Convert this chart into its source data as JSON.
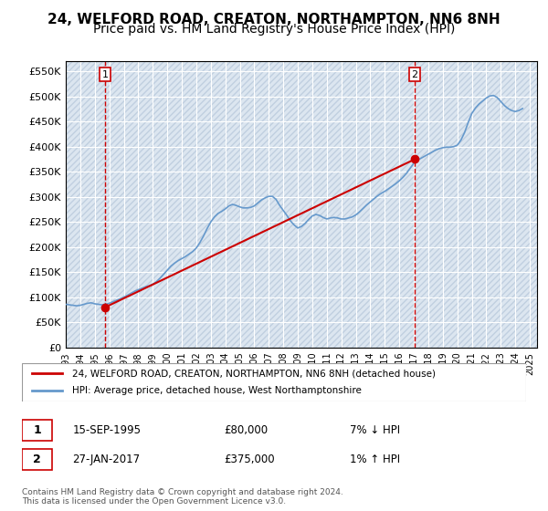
{
  "title": "24, WELFORD ROAD, CREATON, NORTHAMPTON, NN6 8NH",
  "subtitle": "Price paid vs. HM Land Registry's House Price Index (HPI)",
  "title_fontsize": 11,
  "subtitle_fontsize": 10,
  "background_color": "#ffffff",
  "plot_bg_color": "#dce6f0",
  "grid_color": "#ffffff",
  "hatch_color": "#c0cfe0",
  "ylabel_ticks": [
    "£0",
    "£50K",
    "£100K",
    "£150K",
    "£200K",
    "£250K",
    "£300K",
    "£350K",
    "£400K",
    "£450K",
    "£500K",
    "£550K"
  ],
  "ytick_values": [
    0,
    50000,
    100000,
    150000,
    200000,
    250000,
    300000,
    350000,
    400000,
    450000,
    500000,
    550000
  ],
  "ylim": [
    0,
    570000
  ],
  "xlim_start": 1993.0,
  "xlim_end": 2025.5,
  "xtick_years": [
    1993,
    1994,
    1995,
    1996,
    1997,
    1998,
    1999,
    2000,
    2001,
    2002,
    2003,
    2004,
    2005,
    2006,
    2007,
    2008,
    2009,
    2010,
    2011,
    2012,
    2013,
    2014,
    2015,
    2016,
    2017,
    2018,
    2019,
    2020,
    2021,
    2022,
    2023,
    2024,
    2025
  ],
  "sale1_x": 1995.71,
  "sale1_y": 80000,
  "sale1_label": "1",
  "sale1_date": "15-SEP-1995",
  "sale1_price": "£80,000",
  "sale1_hpi": "7% ↓ HPI",
  "sale2_x": 2017.07,
  "sale2_y": 375000,
  "sale2_label": "2",
  "sale2_date": "27-JAN-2017",
  "sale2_price": "£375,000",
  "sale2_hpi": "1% ↑ HPI",
  "marker_color": "#cc0000",
  "vline_color": "#cc0000",
  "hpi_line_color": "#6699cc",
  "price_line_color": "#cc0000",
  "legend_label_price": "24, WELFORD ROAD, CREATON, NORTHAMPTON, NN6 8NH (detached house)",
  "legend_label_hpi": "HPI: Average price, detached house, West Northamptonshire",
  "footer": "Contains HM Land Registry data © Crown copyright and database right 2024.\nThis data is licensed under the Open Government Licence v3.0.",
  "hpi_data_x": [
    1993.0,
    1993.25,
    1993.5,
    1993.75,
    1994.0,
    1994.25,
    1994.5,
    1994.75,
    1995.0,
    1995.25,
    1995.5,
    1995.75,
    1996.0,
    1996.25,
    1996.5,
    1996.75,
    1997.0,
    1997.25,
    1997.5,
    1997.75,
    1998.0,
    1998.25,
    1998.5,
    1998.75,
    1999.0,
    1999.25,
    1999.5,
    1999.75,
    2000.0,
    2000.25,
    2000.5,
    2000.75,
    2001.0,
    2001.25,
    2001.5,
    2001.75,
    2002.0,
    2002.25,
    2002.5,
    2002.75,
    2003.0,
    2003.25,
    2003.5,
    2003.75,
    2004.0,
    2004.25,
    2004.5,
    2004.75,
    2005.0,
    2005.25,
    2005.5,
    2005.75,
    2006.0,
    2006.25,
    2006.5,
    2006.75,
    2007.0,
    2007.25,
    2007.5,
    2007.75,
    2008.0,
    2008.25,
    2008.5,
    2008.75,
    2009.0,
    2009.25,
    2009.5,
    2009.75,
    2010.0,
    2010.25,
    2010.5,
    2010.75,
    2011.0,
    2011.25,
    2011.5,
    2011.75,
    2012.0,
    2012.25,
    2012.5,
    2012.75,
    2013.0,
    2013.25,
    2013.5,
    2013.75,
    2014.0,
    2014.25,
    2014.5,
    2014.75,
    2015.0,
    2015.25,
    2015.5,
    2015.75,
    2016.0,
    2016.25,
    2016.5,
    2016.75,
    2017.0,
    2017.25,
    2017.5,
    2017.75,
    2018.0,
    2018.25,
    2018.5,
    2018.75,
    2019.0,
    2019.25,
    2019.5,
    2019.75,
    2020.0,
    2020.25,
    2020.5,
    2020.75,
    2021.0,
    2021.25,
    2021.5,
    2021.75,
    2022.0,
    2022.25,
    2022.5,
    2022.75,
    2023.0,
    2023.25,
    2023.5,
    2023.75,
    2024.0,
    2024.25,
    2024.5
  ],
  "hpi_data_y": [
    86000,
    85000,
    84000,
    83000,
    84000,
    86000,
    88000,
    89000,
    87000,
    86000,
    85000,
    86000,
    88000,
    91000,
    94000,
    97000,
    100000,
    104000,
    108000,
    112000,
    115000,
    118000,
    121000,
    123000,
    126000,
    131000,
    138000,
    146000,
    154000,
    162000,
    168000,
    173000,
    177000,
    181000,
    186000,
    191000,
    198000,
    209000,
    222000,
    237000,
    250000,
    260000,
    267000,
    271000,
    276000,
    282000,
    285000,
    283000,
    280000,
    278000,
    278000,
    279000,
    282000,
    288000,
    294000,
    298000,
    301000,
    301000,
    295000,
    283000,
    273000,
    263000,
    252000,
    244000,
    238000,
    241000,
    247000,
    255000,
    262000,
    265000,
    263000,
    259000,
    256000,
    258000,
    259000,
    258000,
    256000,
    256000,
    258000,
    260000,
    264000,
    270000,
    277000,
    284000,
    290000,
    296000,
    302000,
    307000,
    311000,
    316000,
    321000,
    326000,
    332000,
    339000,
    347000,
    357000,
    367000,
    373000,
    377000,
    381000,
    385000,
    389000,
    393000,
    396000,
    398000,
    399000,
    399000,
    400000,
    403000,
    413000,
    428000,
    448000,
    466000,
    477000,
    485000,
    491000,
    497000,
    501000,
    502000,
    498000,
    490000,
    482000,
    476000,
    472000,
    470000,
    472000,
    476000
  ],
  "price_data_x": [
    1995.71,
    2017.07
  ],
  "price_data_y": [
    80000,
    375000
  ]
}
